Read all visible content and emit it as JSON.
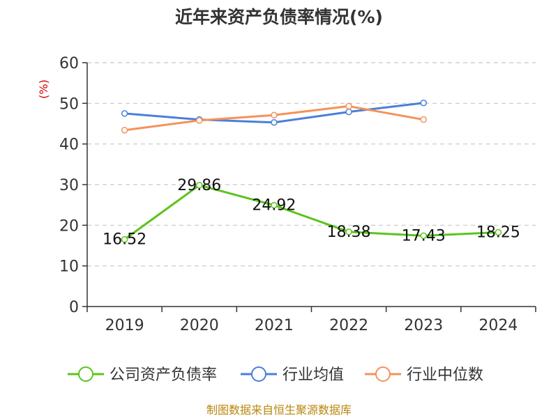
{
  "chart_data": {
    "type": "line",
    "title": "近年来资产负债率情况(%)",
    "ylabel": "(%)",
    "xlabel": "",
    "ylim": [
      0,
      60
    ],
    "yticks": [
      0,
      10,
      20,
      30,
      40,
      50,
      60
    ],
    "categories": [
      "2019",
      "2020",
      "2021",
      "2022",
      "2023",
      "2024"
    ],
    "grid": true,
    "legend_position": "bottom",
    "series": [
      {
        "name": "公司资产负债率",
        "color": "#5cc31c",
        "values": [
          16.52,
          29.86,
          24.92,
          18.38,
          17.43,
          18.25
        ],
        "data_labels": [
          "16.52",
          "29.86",
          "24.92",
          "18.38",
          "17.43",
          "18.25"
        ]
      },
      {
        "name": "行业均值",
        "color": "#4a7fdb",
        "values": [
          47.5,
          46.0,
          45.3,
          47.9,
          50.1,
          null
        ]
      },
      {
        "name": "行业中位数",
        "color": "#f5915a",
        "values": [
          43.4,
          45.8,
          47.1,
          49.3,
          46.0,
          null
        ]
      }
    ]
  },
  "footer": "制图数据来自恒生聚源数据库"
}
